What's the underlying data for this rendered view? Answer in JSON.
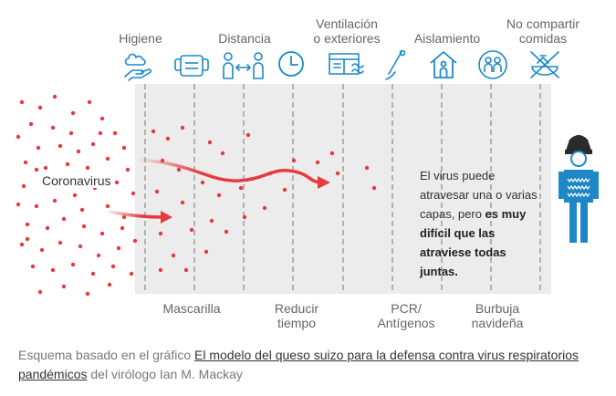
{
  "layers_top": [
    {
      "label_l1": "Higiene",
      "label_l2": "",
      "icon": "hand-soap-icon"
    },
    {
      "label_l1": "",
      "label_l2": "",
      "icon": "face-mask-icon"
    },
    {
      "label_l1": "Distancia",
      "label_l2": "",
      "icon": "two-people-distance-icon"
    },
    {
      "label_l1": "",
      "label_l2": "",
      "icon": "clock-icon"
    },
    {
      "label_l1": "Ventilación",
      "label_l2": "o exteriores",
      "icon": "window-icon"
    },
    {
      "label_l1": "",
      "label_l2": "",
      "icon": "swab-test-icon"
    },
    {
      "label_l1": "Aislamiento",
      "label_l2": "",
      "icon": "house-icon"
    },
    {
      "label_l1": "",
      "label_l2": "",
      "icon": "bubble-people-icon"
    },
    {
      "label_l1": "No compartir",
      "label_l2": "comidas",
      "icon": "no-shared-food-icon"
    }
  ],
  "bottom_labels": [
    {
      "l1": "Mascarilla",
      "l2": ""
    },
    {
      "l1": "Reducir",
      "l2": "tiempo"
    },
    {
      "l1": "PCR/",
      "l2": "Antígenos"
    },
    {
      "l1": "Burbuja",
      "l2": "navideña"
    }
  ],
  "virus_label": "Coronavirus",
  "note": {
    "plain": "El virus puede atravesar una o varias capas, pero ",
    "bold": "es muy difícil que las atraviese todas juntas."
  },
  "caption": {
    "prefix": "Esquema basado en el gráfico ",
    "link": "El modelo del queso suizo para la defensa contra virus respiratorios pandémicos",
    "suffix": " del virólogo Ian M. Mackay"
  },
  "colors": {
    "virus": "#e8393e",
    "icon": "#1e88c7",
    "layer": "#ececec",
    "person": "#1e88c7",
    "hat": "#2b2b2b"
  }
}
